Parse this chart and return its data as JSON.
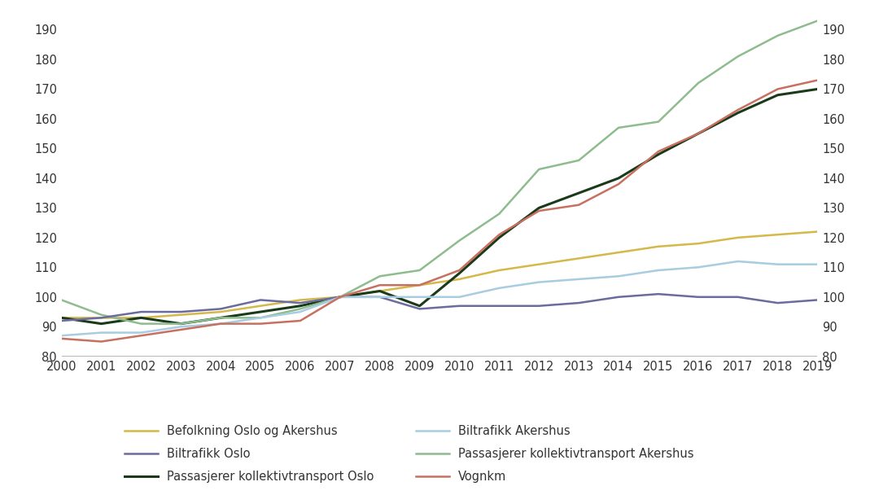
{
  "years": [
    2000,
    2001,
    2002,
    2003,
    2004,
    2005,
    2006,
    2007,
    2008,
    2009,
    2010,
    2011,
    2012,
    2013,
    2014,
    2015,
    2016,
    2017,
    2018,
    2019
  ],
  "befolkning_oslo_akershus": [
    93,
    93,
    93,
    94,
    95,
    97,
    99,
    100,
    102,
    104,
    106,
    109,
    111,
    113,
    115,
    117,
    118,
    120,
    121,
    122
  ],
  "passasjerer_kollektiv_oslo": [
    93,
    91,
    93,
    91,
    93,
    95,
    97,
    100,
    102,
    97,
    108,
    120,
    130,
    135,
    140,
    148,
    155,
    162,
    168,
    170
  ],
  "passasjerer_kollektiv_akershus": [
    99,
    94,
    91,
    91,
    93,
    93,
    96,
    100,
    107,
    109,
    119,
    128,
    143,
    146,
    157,
    159,
    172,
    181,
    188,
    193
  ],
  "biltrafikk_oslo": [
    92,
    93,
    95,
    95,
    96,
    99,
    98,
    100,
    100,
    96,
    97,
    97,
    97,
    98,
    100,
    101,
    100,
    100,
    98,
    99
  ],
  "biltrafikk_akershus": [
    87,
    88,
    88,
    90,
    91,
    93,
    95,
    100,
    100,
    100,
    100,
    103,
    105,
    106,
    107,
    109,
    110,
    112,
    111,
    111
  ],
  "vognkm": [
    86,
    85,
    87,
    89,
    91,
    91,
    92,
    100,
    104,
    104,
    109,
    121,
    129,
    131,
    138,
    149,
    155,
    163,
    170,
    173
  ],
  "colors": {
    "befolkning_oslo_akershus": "#d4b84a",
    "passasjerer_kollektiv_oslo": "#1a3a1a",
    "passasjerer_kollektiv_akershus": "#8fbc8f",
    "biltrafikk_oslo": "#6b6b9e",
    "biltrafikk_akershus": "#a8cce0",
    "vognkm": "#c87060"
  },
  "legend_labels": {
    "befolkning_oslo_akershus": "Befolkning Oslo og Akershus",
    "passasjerer_kollektiv_oslo": "Passasjerer kollektivtransport Oslo",
    "passasjerer_kollektiv_akershus": "Passasjerer kollektivtransport Akershus",
    "biltrafikk_oslo": "Biltrafikk Oslo",
    "biltrafikk_akershus": "Biltrafikk Akershus",
    "vognkm": "Vognkm"
  },
  "ylim": [
    80,
    195
  ],
  "yticks": [
    80,
    90,
    100,
    110,
    120,
    130,
    140,
    150,
    160,
    170,
    180,
    190
  ],
  "background_color": "#ffffff",
  "line_width": 1.8
}
